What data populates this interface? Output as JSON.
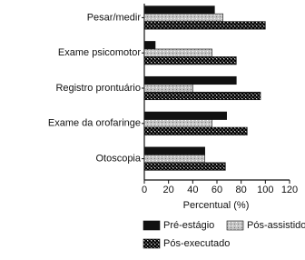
{
  "chart_data": {
    "type": "barh",
    "categories": [
      "Pesar/medir",
      "Exame psicomotor",
      "Registro prontuário",
      "Exame da orofaringe",
      "Otoscopia"
    ],
    "series": [
      {
        "name": "Pré-estágio",
        "color": "#111111",
        "values": [
          58,
          9,
          76,
          68,
          50
        ]
      },
      {
        "name": "Pós-assistido",
        "color": "#c4c4c4",
        "values": [
          65,
          56,
          40,
          56,
          50
        ]
      },
      {
        "name": "Pós-executado",
        "color": "#4a4a4a",
        "values": [
          100,
          76,
          96,
          85,
          67
        ]
      }
    ],
    "x_label": "Percentual (%)",
    "xlim": [
      0,
      120
    ],
    "xticks": [
      0,
      20,
      40,
      60,
      80,
      100,
      120
    ],
    "legend": "bottom"
  }
}
